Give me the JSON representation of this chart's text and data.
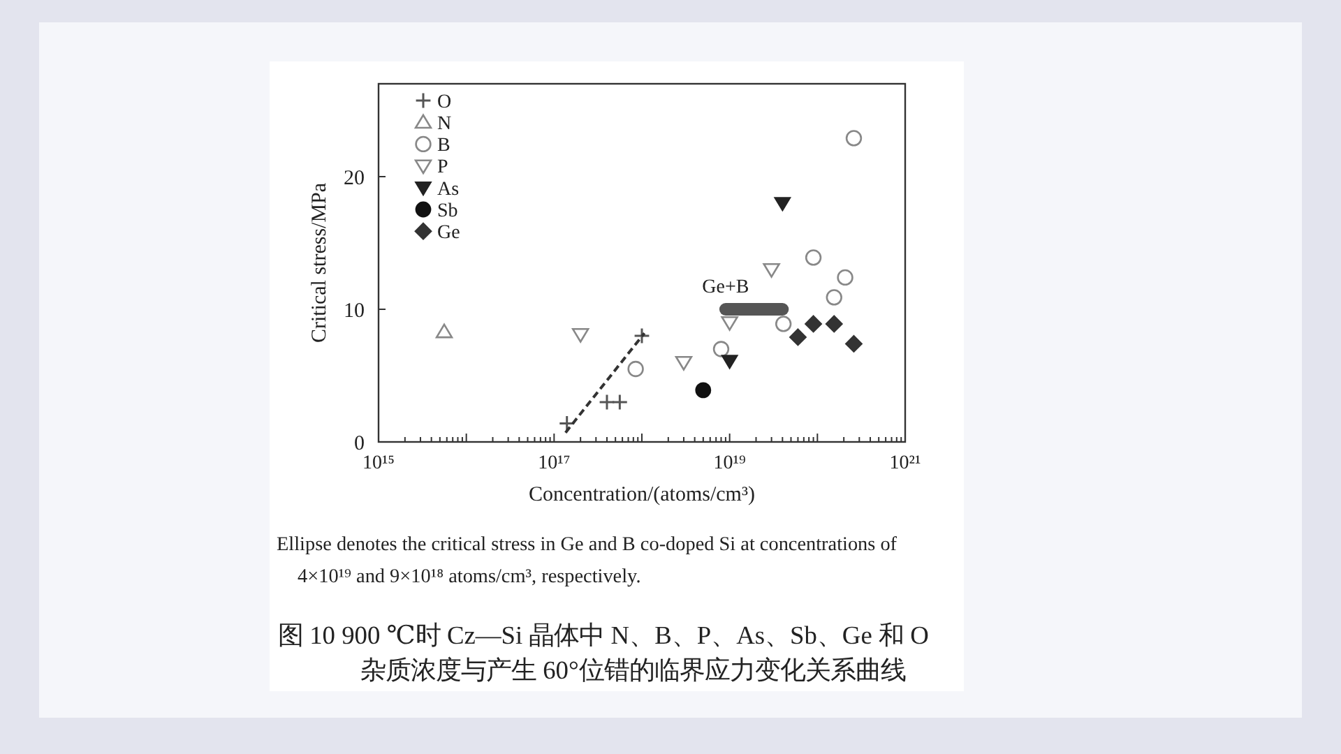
{
  "chart_data": {
    "type": "scatter",
    "xlabel": "Concentration/(atoms/cm³)",
    "ylabel": "Critical stress/MPa",
    "log": "x",
    "xlim": [
      1000000000000000.0,
      1e+21
    ],
    "ylim": [
      0,
      27
    ],
    "xticks": [
      {
        "value": 1000000000000000.0,
        "label": "10¹⁵"
      },
      {
        "value": 2000000000000000.0,
        "label": null
      },
      {
        "value": 3000000000000000.0,
        "label": null
      },
      {
        "value": 4000000000000000.0,
        "label": null
      },
      {
        "value": 5000000000000000.0,
        "label": null
      },
      {
        "value": 6000000000000000.0,
        "label": null
      },
      {
        "value": 7000000000000000.0,
        "label": null
      },
      {
        "value": 8000000000000000.0,
        "label": null
      },
      {
        "value": 9000000000000000.0,
        "label": null
      },
      {
        "value": 1e+16,
        "label": null
      },
      {
        "value": 2e+16,
        "label": null
      },
      {
        "value": 3e+16,
        "label": null
      },
      {
        "value": 4e+16,
        "label": null
      },
      {
        "value": 5e+16,
        "label": null
      },
      {
        "value": 6e+16,
        "label": null
      },
      {
        "value": 7e+16,
        "label": null
      },
      {
        "value": 8e+16,
        "label": null
      },
      {
        "value": 9e+16,
        "label": null
      },
      {
        "value": 1e+17,
        "label": "10¹⁷"
      },
      {
        "value": 2e+17,
        "label": null
      },
      {
        "value": 3e+17,
        "label": null
      },
      {
        "value": 4e+17,
        "label": null
      },
      {
        "value": 5e+17,
        "label": null
      },
      {
        "value": 6e+17,
        "label": null
      },
      {
        "value": 7e+17,
        "label": null
      },
      {
        "value": 8e+17,
        "label": null
      },
      {
        "value": 9e+17,
        "label": null
      },
      {
        "value": 1e+18,
        "label": null
      },
      {
        "value": 2e+18,
        "label": null
      },
      {
        "value": 3e+18,
        "label": null
      },
      {
        "value": 4e+18,
        "label": null
      },
      {
        "value": 5e+18,
        "label": null
      },
      {
        "value": 6e+18,
        "label": null
      },
      {
        "value": 7e+18,
        "label": null
      },
      {
        "value": 8e+18,
        "label": null
      },
      {
        "value": 9e+18,
        "label": null
      },
      {
        "value": 1e+19,
        "label": "10¹⁹"
      },
      {
        "value": 2e+19,
        "label": null
      },
      {
        "value": 3e+19,
        "label": null
      },
      {
        "value": 4e+19,
        "label": null
      },
      {
        "value": 5e+19,
        "label": null
      },
      {
        "value": 6e+19,
        "label": null
      },
      {
        "value": 7e+19,
        "label": null
      },
      {
        "value": 8e+19,
        "label": null
      },
      {
        "value": 9e+19,
        "label": null
      },
      {
        "value": 1e+20,
        "label": null
      },
      {
        "value": 2e+20,
        "label": null
      },
      {
        "value": 3e+20,
        "label": null
      },
      {
        "value": 4e+20,
        "label": null
      },
      {
        "value": 5e+20,
        "label": null
      },
      {
        "value": 6e+20,
        "label": null
      },
      {
        "value": 7e+20,
        "label": null
      },
      {
        "value": 8e+20,
        "label": null
      },
      {
        "value": 9e+20,
        "label": null
      },
      {
        "value": 1e+21,
        "label": "10²¹"
      }
    ],
    "yticks": [
      0,
      10,
      20
    ],
    "legend": "top left",
    "annotations": [
      "Ellipse denotes the critical stress in Ge and B co-doped Si at concentrations of 4×10¹⁹ and 9×10¹⁸ atoms/cm³, respectively.",
      "图 10 900 ℃时 Cz—Si 晶体中 N、B、P、As、Sb、Ge 和 O 杂质浓度与产生 60°位错的临界应力变化关系曲线"
    ],
    "series": [
      {
        "name": "O",
        "marker": "cross",
        "color": "#555555",
        "x": [
          1.4e+17,
          4e+17,
          5.6e+17,
          1e+18
        ],
        "values": [
          1.4,
          3,
          3,
          8
        ]
      },
      {
        "type": "line",
        "line_style": "dashed",
        "color": "#333333",
        "x": [
          1.35e+17,
          1.07e+18
        ],
        "values": [
          0.7,
          8.2
        ]
      },
      {
        "name": "N",
        "marker": "triangle-open",
        "color": "#888888",
        "x": [
          5600000000000000.0
        ],
        "values": [
          8.3
        ]
      },
      {
        "name": "B",
        "marker": "circle-open",
        "color": "#888888",
        "x": [
          8.5e+17,
          8e+18,
          4.1e+19,
          9e+19,
          1.55e+20,
          2.07e+20,
          2.6e+20
        ],
        "values": [
          5.5,
          7,
          8.9,
          13.9,
          10.9,
          12.4,
          22.9
        ]
      },
      {
        "name": "P",
        "marker": "triangle-down-open",
        "color": "#888888",
        "x": [
          2e+17,
          3e+18,
          1e+19,
          3e+19
        ],
        "values": [
          8.1,
          6,
          9,
          13
        ]
      },
      {
        "name": "As",
        "marker": "triangle-down",
        "color": "#222222",
        "x": [
          1e+19,
          4e+19
        ],
        "values": [
          6.1,
          18
        ]
      },
      {
        "name": "Sb",
        "marker": "circle",
        "color": "#111111",
        "x": [
          5e+18
        ],
        "values": [
          3.9
        ]
      },
      {
        "name": "Ge",
        "marker": "diamond",
        "color": "#333333",
        "x": [
          6e+19,
          9e+19,
          1.55e+20,
          2.6e+20
        ],
        "values": [
          7.9,
          8.9,
          8.9,
          7.4
        ]
      },
      {
        "name": "Ge+B",
        "type": "line",
        "line_style": "solid",
        "color": "#555555",
        "x": [
          9e+18,
          4e+19
        ],
        "values": [
          10,
          10
        ]
      }
    ]
  }
}
